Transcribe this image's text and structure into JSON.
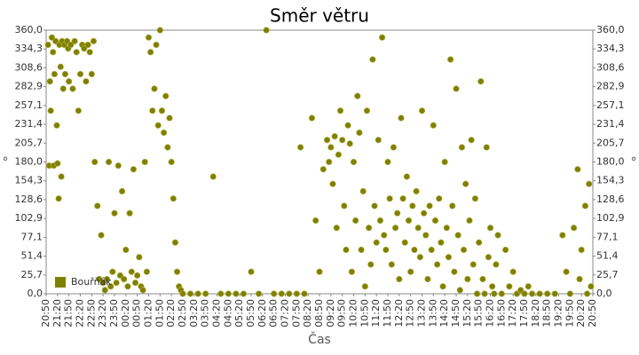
{
  "chart_data": {
    "type": "scatter",
    "title": "Směr větru",
    "x_label": "Čas",
    "y_label": "°",
    "y2_label": "°",
    "xlim": [
      0,
      1440
    ],
    "ylim": [
      0,
      360
    ],
    "grid": false,
    "legend": "lower left",
    "xticks": [
      {
        "value": 0,
        "label": "20:50"
      },
      {
        "value": 30,
        "label": "21:20"
      },
      {
        "value": 60,
        "label": "21:50"
      },
      {
        "value": 90,
        "label": "22:20"
      },
      {
        "value": 120,
        "label": "22:50"
      },
      {
        "value": 150,
        "label": "23:20"
      },
      {
        "value": 180,
        "label": "23:50"
      },
      {
        "value": 210,
        "label": "00:20"
      },
      {
        "value": 240,
        "label": "00:50"
      },
      {
        "value": 270,
        "label": "01:20"
      },
      {
        "value": 300,
        "label": "01:50"
      },
      {
        "value": 330,
        "label": "02:20"
      },
      {
        "value": 360,
        "label": "02:50"
      },
      {
        "value": 390,
        "label": "03:20"
      },
      {
        "value": 420,
        "label": "03:50"
      },
      {
        "value": 450,
        "label": "04:20"
      },
      {
        "value": 480,
        "label": "04:50"
      },
      {
        "value": 510,
        "label": "05:20"
      },
      {
        "value": 540,
        "label": "05:50"
      },
      {
        "value": 570,
        "label": "06:20"
      },
      {
        "value": 600,
        "label": "06:50"
      },
      {
        "value": 630,
        "label": "07:20"
      },
      {
        "value": 660,
        "label": "07:50"
      },
      {
        "value": 690,
        "label": "08:20"
      },
      {
        "value": 720,
        "label": "08:50"
      },
      {
        "value": 750,
        "label": "09:20"
      },
      {
        "value": 780,
        "label": "09:50"
      },
      {
        "value": 810,
        "label": "10:20"
      },
      {
        "value": 840,
        "label": "10:50"
      },
      {
        "value": 870,
        "label": "11:20"
      },
      {
        "value": 900,
        "label": "11:50"
      },
      {
        "value": 930,
        "label": "12:20"
      },
      {
        "value": 960,
        "label": "12:50"
      },
      {
        "value": 990,
        "label": "13:20"
      },
      {
        "value": 1020,
        "label": "13:50"
      },
      {
        "value": 1050,
        "label": "14:20"
      },
      {
        "value": 1080,
        "label": "14:50"
      },
      {
        "value": 1110,
        "label": "15:20"
      },
      {
        "value": 1140,
        "label": "15:50"
      },
      {
        "value": 1170,
        "label": "16:20"
      },
      {
        "value": 1200,
        "label": "16:50"
      },
      {
        "value": 1230,
        "label": "17:20"
      },
      {
        "value": 1260,
        "label": "17:50"
      },
      {
        "value": 1290,
        "label": "18:20"
      },
      {
        "value": 1320,
        "label": "18:50"
      },
      {
        "value": 1350,
        "label": "19:20"
      },
      {
        "value": 1380,
        "label": "19:50"
      },
      {
        "value": 1410,
        "label": "20:20"
      },
      {
        "value": 1440,
        "label": "20:50"
      }
    ],
    "yticks": [
      {
        "value": 0,
        "label": "0,0"
      },
      {
        "value": 25.7,
        "label": "25,7"
      },
      {
        "value": 51.4,
        "label": "51,4"
      },
      {
        "value": 77.1,
        "label": "77,1"
      },
      {
        "value": 102.9,
        "label": "102,9"
      },
      {
        "value": 128.6,
        "label": "128,6"
      },
      {
        "value": 154.3,
        "label": "154,3"
      },
      {
        "value": 180,
        "label": "180,0"
      },
      {
        "value": 205.7,
        "label": "205,7"
      },
      {
        "value": 231.4,
        "label": "231,4"
      },
      {
        "value": 257.1,
        "label": "257,1"
      },
      {
        "value": 282.9,
        "label": "282,9"
      },
      {
        "value": 308.6,
        "label": "308,6"
      },
      {
        "value": 334.3,
        "label": "334,3"
      },
      {
        "value": 360,
        "label": "360,0"
      }
    ],
    "series": [
      {
        "name": "Bouřňák",
        "color": "#808000",
        "x": [
          5,
          8,
          10,
          12,
          15,
          18,
          20,
          22,
          25,
          28,
          30,
          33,
          35,
          38,
          40,
          42,
          45,
          48,
          50,
          55,
          58,
          60,
          65,
          70,
          75,
          80,
          85,
          90,
          95,
          100,
          105,
          110,
          115,
          120,
          125,
          128,
          135,
          140,
          145,
          150,
          155,
          160,
          165,
          170,
          175,
          180,
          185,
          190,
          195,
          200,
          205,
          210,
          215,
          220,
          225,
          230,
          235,
          240,
          245,
          250,
          255,
          260,
          265,
          270,
          275,
          280,
          285,
          290,
          295,
          300,
          305,
          310,
          315,
          320,
          325,
          330,
          335,
          340,
          345,
          350,
          355,
          360,
          380,
          400,
          420,
          440,
          460,
          480,
          500,
          520,
          540,
          560,
          580,
          600,
          620,
          640,
          660,
          670,
          680,
          700,
          710,
          720,
          730,
          740,
          745,
          750,
          755,
          760,
          765,
          770,
          775,
          780,
          785,
          790,
          795,
          800,
          805,
          810,
          815,
          820,
          825,
          830,
          835,
          840,
          845,
          850,
          855,
          860,
          865,
          870,
          875,
          880,
          885,
          890,
          895,
          900,
          905,
          910,
          915,
          920,
          925,
          930,
          935,
          940,
          945,
          950,
          955,
          960,
          965,
          970,
          975,
          980,
          985,
          990,
          995,
          1000,
          1005,
          1010,
          1015,
          1020,
          1025,
          1030,
          1035,
          1040,
          1045,
          1050,
          1055,
          1060,
          1065,
          1070,
          1075,
          1080,
          1085,
          1090,
          1095,
          1100,
          1105,
          1110,
          1115,
          1120,
          1125,
          1130,
          1135,
          1140,
          1145,
          1150,
          1155,
          1160,
          1165,
          1170,
          1175,
          1180,
          1185,
          1190,
          1200,
          1210,
          1220,
          1230,
          1240,
          1250,
          1260,
          1270,
          1280,
          1300,
          1320,
          1340,
          1360,
          1370,
          1380,
          1390,
          1400,
          1405,
          1410,
          1420,
          1425,
          1430,
          1435
        ],
        "values": [
          340,
          175,
          290,
          250,
          350,
          330,
          175,
          300,
          345,
          230,
          178,
          130,
          340,
          310,
          160,
          345,
          280,
          340,
          300,
          345,
          335,
          290,
          340,
          280,
          345,
          330,
          250,
          300,
          340,
          335,
          290,
          340,
          330,
          300,
          345,
          180,
          120,
          20,
          80,
          15,
          5,
          20,
          180,
          10,
          30,
          110,
          15,
          175,
          25,
          140,
          20,
          60,
          10,
          110,
          30,
          170,
          15,
          25,
          50,
          10,
          5,
          180,
          30,
          350,
          330,
          250,
          280,
          340,
          230,
          360,
          250,
          220,
          270,
          200,
          240,
          180,
          130,
          70,
          30,
          10,
          5,
          0,
          0,
          0,
          0,
          160,
          0,
          0,
          0,
          0,
          30,
          0,
          360,
          0,
          0,
          0,
          0,
          200,
          0,
          240,
          100,
          30,
          170,
          210,
          180,
          200,
          150,
          215,
          90,
          190,
          250,
          210,
          120,
          60,
          230,
          205,
          30,
          180,
          100,
          270,
          220,
          60,
          140,
          10,
          250,
          90,
          40,
          320,
          120,
          70,
          210,
          100,
          350,
          80,
          60,
          180,
          130,
          40,
          200,
          90,
          110,
          20,
          240,
          130,
          70,
          160,
          100,
          30,
          120,
          60,
          140,
          90,
          50,
          250,
          110,
          80,
          20,
          120,
          60,
          230,
          100,
          40,
          130,
          70,
          10,
          180,
          90,
          50,
          320,
          120,
          30,
          280,
          80,
          5,
          200,
          60,
          150,
          20,
          100,
          210,
          40,
          130,
          0,
          70,
          290,
          20,
          0,
          200,
          50,
          90,
          10,
          0,
          40,
          80,
          0,
          60,
          10,
          30,
          0,
          5,
          0,
          10,
          0,
          0,
          0,
          0,
          80,
          30,
          0,
          90,
          170,
          20,
          60,
          120,
          0,
          150,
          10
        ]
      }
    ]
  }
}
